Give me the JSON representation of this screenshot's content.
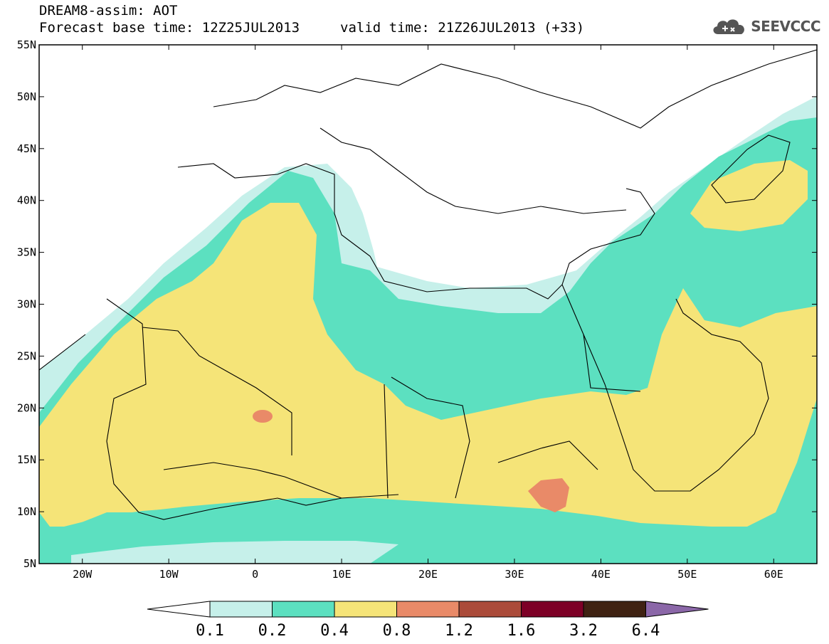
{
  "header": {
    "title": "DREAM8-assim: AOT",
    "base_time": "Forecast base time: 12Z25JUL2013",
    "valid_time": "valid time: 21Z26JUL2013 (+33)"
  },
  "logo": {
    "text": "SEEVCCC",
    "icon": "cloud-icon"
  },
  "map": {
    "lon_range": [
      -25,
      65
    ],
    "lat_range": [
      5,
      55
    ],
    "lat_ticks": [
      "55N",
      "50N",
      "45N",
      "40N",
      "35N",
      "30N",
      "25N",
      "20N",
      "15N",
      "10N",
      "5N"
    ],
    "lon_ticks": [
      "20W",
      "10W",
      "0",
      "10E",
      "20E",
      "30E",
      "40E",
      "50E",
      "60E"
    ]
  },
  "colorbar": {
    "labels": [
      "0.1",
      "0.2",
      "0.4",
      "0.8",
      "1.2",
      "1.6",
      "3.2",
      "6.4"
    ],
    "colors": [
      "#ffffff",
      "#c6f0ea",
      "#5ce0c0",
      "#f5e478",
      "#e98a68",
      "#ab4b3a",
      "#7d0026",
      "#3f2212",
      "#8b67a8"
    ]
  }
}
